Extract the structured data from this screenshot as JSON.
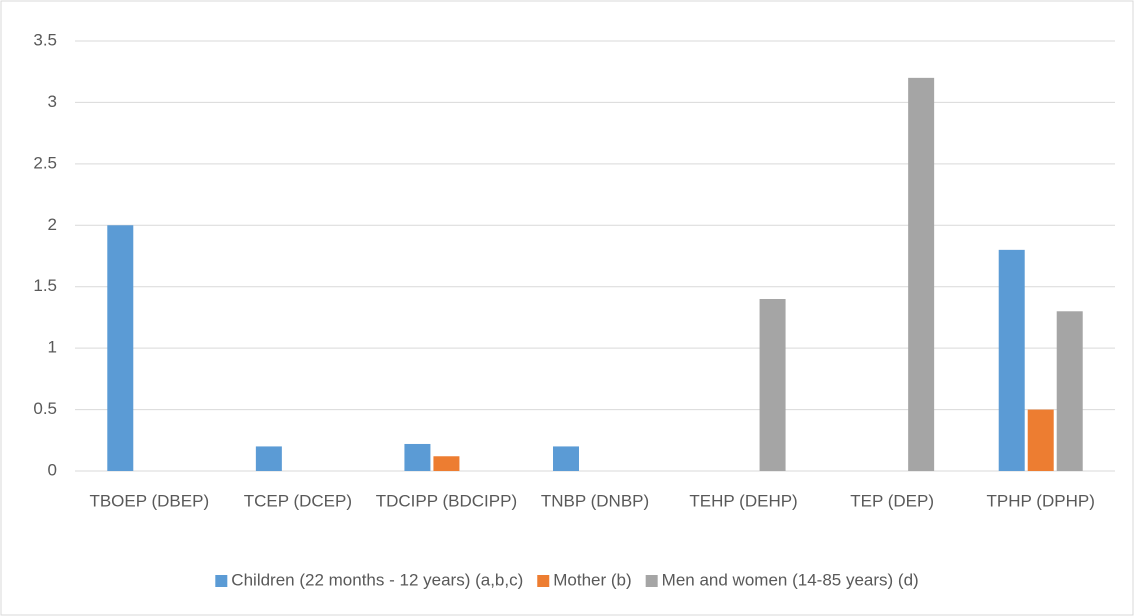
{
  "chart_data": {
    "type": "bar",
    "categories": [
      "TBOEP (DBEP)",
      "TCEP (DCEP)",
      "TDCIPP (BDCIPP)",
      "TNBP (DNBP)",
      "TEHP (DEHP)",
      "TEP (DEP)",
      "TPHP (DPHP)"
    ],
    "series": [
      {
        "name": "Children (22 months - 12 years) (a,b,c)",
        "color": "#5b9bd5",
        "values": [
          2,
          0.2,
          0.22,
          0.2,
          null,
          null,
          1.8
        ]
      },
      {
        "name": "Mother (b)",
        "color": "#ed7d31",
        "values": [
          null,
          null,
          0.12,
          null,
          null,
          null,
          0.5
        ]
      },
      {
        "name": "Men and women (14-85 years) (d)",
        "color": "#a5a5a5",
        "values": [
          null,
          null,
          null,
          null,
          1.4,
          3.2,
          1.3
        ]
      }
    ],
    "ylim": [
      0,
      3.5
    ],
    "yticks": [
      0,
      0.5,
      1,
      1.5,
      2,
      2.5,
      3,
      3.5
    ],
    "grid": true,
    "legend": "bottom"
  }
}
